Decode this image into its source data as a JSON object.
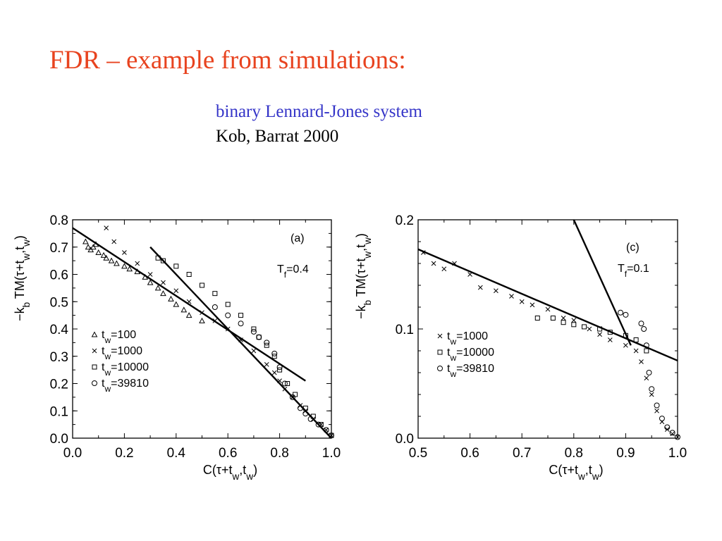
{
  "slide": {
    "title": "FDR – example from simulations:",
    "subtitle": "binary Lennard-Jones system",
    "citation": "Kob, Barrat 2000"
  },
  "colors": {
    "title": "#e8431f",
    "subtitle": "#3535c8",
    "ink": "#000000"
  },
  "chart_data": [
    {
      "type": "scatter",
      "panel_label": "(a)",
      "annotation": "T_f=0.4",
      "xlabel": "C(τ+t_w,t_w)",
      "ylabel": "−k_b TM(τ+t_w,t_w)",
      "xlim": [
        0.0,
        1.0
      ],
      "ylim": [
        0.0,
        0.8
      ],
      "xticks": [
        "0.0",
        "0.2",
        "0.4",
        "0.6",
        "0.8",
        "1.0"
      ],
      "yticks": [
        "0.0",
        "0.1",
        "0.2",
        "0.3",
        "0.4",
        "0.5",
        "0.6",
        "0.7",
        "0.8"
      ],
      "legend_position": "bottom-left",
      "series": [
        {
          "name": "t_w=100",
          "marker": "triangle",
          "x": [
            0.05,
            0.06,
            0.07,
            0.08,
            0.09,
            0.1,
            0.12,
            0.13,
            0.15,
            0.17,
            0.2,
            0.22,
            0.25,
            0.28,
            0.3,
            0.33,
            0.35,
            0.38,
            0.4,
            0.43,
            0.45,
            0.5
          ],
          "y": [
            0.72,
            0.7,
            0.69,
            0.7,
            0.71,
            0.68,
            0.67,
            0.66,
            0.65,
            0.64,
            0.63,
            0.62,
            0.61,
            0.59,
            0.57,
            0.55,
            0.53,
            0.51,
            0.49,
            0.47,
            0.45,
            0.43
          ]
        },
        {
          "name": "t_w=1000",
          "marker": "cross",
          "x": [
            0.13,
            0.16,
            0.2,
            0.25,
            0.3,
            0.35,
            0.4,
            0.45,
            0.5,
            0.55,
            0.6,
            0.65,
            0.7,
            0.75,
            0.78,
            0.8,
            0.82,
            0.85,
            0.88,
            0.9,
            0.93,
            0.96,
            0.98,
            1.0
          ],
          "y": [
            0.77,
            0.72,
            0.68,
            0.64,
            0.6,
            0.57,
            0.54,
            0.5,
            0.46,
            0.43,
            0.4,
            0.36,
            0.32,
            0.27,
            0.24,
            0.21,
            0.18,
            0.15,
            0.12,
            0.1,
            0.07,
            0.05,
            0.03,
            0.01
          ]
        },
        {
          "name": "t_w=10000",
          "marker": "square",
          "x": [
            0.33,
            0.35,
            0.4,
            0.45,
            0.5,
            0.55,
            0.6,
            0.65,
            0.7,
            0.72,
            0.75,
            0.78,
            0.8,
            0.83,
            0.86,
            0.9,
            0.93,
            0.96,
            1.0
          ],
          "y": [
            0.66,
            0.65,
            0.63,
            0.6,
            0.56,
            0.53,
            0.49,
            0.45,
            0.4,
            0.37,
            0.34,
            0.3,
            0.25,
            0.2,
            0.16,
            0.11,
            0.08,
            0.05,
            0.01
          ]
        },
        {
          "name": "t_w=39810",
          "marker": "circle",
          "x": [
            0.55,
            0.6,
            0.65,
            0.7,
            0.72,
            0.75,
            0.78,
            0.8,
            0.82,
            0.85,
            0.88,
            0.9,
            0.92,
            0.95,
            0.98,
            1.0
          ],
          "y": [
            0.48,
            0.45,
            0.42,
            0.39,
            0.37,
            0.35,
            0.31,
            0.26,
            0.2,
            0.15,
            0.11,
            0.09,
            0.07,
            0.05,
            0.03,
            0.01
          ]
        }
      ],
      "lines": [
        {
          "x": [
            0.0,
            0.9
          ],
          "y": [
            0.77,
            0.21
          ]
        },
        {
          "x": [
            0.3,
            1.0
          ],
          "y": [
            0.7,
            0.0
          ]
        }
      ]
    },
    {
      "type": "scatter",
      "panel_label": "(c)",
      "annotation": "T_f=0.1",
      "xlabel": "C(τ+t_w,t_w)",
      "ylabel": "−k_b TM(τ+t_w,t_w)",
      "xlim": [
        0.5,
        1.0
      ],
      "ylim": [
        0.0,
        0.2
      ],
      "xticks": [
        "0.5",
        "0.6",
        "0.7",
        "0.8",
        "0.9",
        "1.0"
      ],
      "yticks": [
        "0.0",
        "0.1",
        "0.2"
      ],
      "legend_position": "middle-left",
      "series": [
        {
          "name": "t_w=1000",
          "marker": "cross",
          "x": [
            0.51,
            0.53,
            0.55,
            0.57,
            0.6,
            0.62,
            0.65,
            0.68,
            0.7,
            0.72,
            0.75,
            0.78,
            0.8,
            0.83,
            0.85,
            0.87,
            0.9,
            0.92,
            0.93,
            0.94,
            0.95,
            0.96,
            0.97,
            0.98,
            0.99,
            1.0
          ],
          "y": [
            0.17,
            0.16,
            0.155,
            0.16,
            0.15,
            0.138,
            0.135,
            0.13,
            0.125,
            0.122,
            0.118,
            0.11,
            0.108,
            0.1,
            0.095,
            0.09,
            0.085,
            0.08,
            0.07,
            0.055,
            0.04,
            0.025,
            0.015,
            0.008,
            0.004,
            0.001
          ]
        },
        {
          "name": "t_w=10000",
          "marker": "square",
          "x": [
            0.73,
            0.76,
            0.78,
            0.8,
            0.82,
            0.85,
            0.87,
            0.9,
            0.92,
            0.94
          ],
          "y": [
            0.11,
            0.11,
            0.106,
            0.104,
            0.102,
            0.1,
            0.097,
            0.094,
            0.09,
            0.08
          ]
        },
        {
          "name": "t_w=39810",
          "marker": "circle",
          "x": [
            0.89,
            0.9,
            0.93,
            0.935,
            0.94,
            0.945,
            0.95,
            0.96,
            0.97,
            0.98,
            0.99,
            1.0
          ],
          "y": [
            0.115,
            0.113,
            0.105,
            0.1,
            0.085,
            0.06,
            0.045,
            0.03,
            0.018,
            0.01,
            0.005,
            0.001
          ]
        }
      ],
      "lines": [
        {
          "x": [
            0.5,
            1.0
          ],
          "y": [
            0.173,
            0.071
          ]
        },
        {
          "x": [
            0.8,
            0.91
          ],
          "y": [
            0.2,
            0.085
          ]
        }
      ]
    }
  ]
}
